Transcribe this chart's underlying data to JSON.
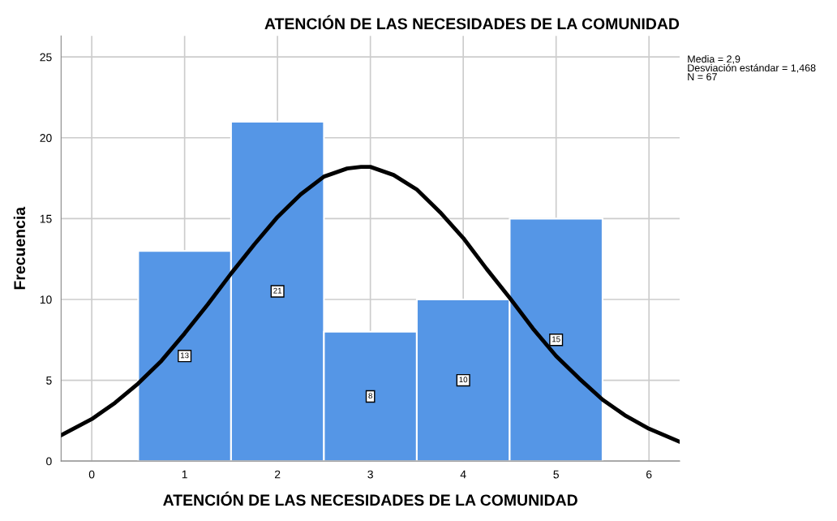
{
  "chart_data": {
    "type": "histogram",
    "title": "ATENCIÓN DE LAS NECESIDADES DE LA COMUNIDAD",
    "xlabel": "ATENCIÓN DE LAS NECESIDADES DE LA COMUNIDAD",
    "ylabel": "Frecuencia",
    "bins": [
      0.5,
      1.5,
      2.5,
      3.5,
      4.5,
      5.5
    ],
    "series": [
      {
        "color": "#5596e6",
        "values": [
          13,
          21,
          8,
          10,
          15
        ],
        "value_labels": [
          "13",
          "21",
          "8",
          "10",
          "15"
        ]
      },
      {
        "type": "line",
        "color": "#000000",
        "x": [
          -0.33,
          0,
          0.25,
          0.5,
          0.75,
          1,
          1.25,
          1.5,
          1.75,
          2,
          2.25,
          2.5,
          2.75,
          2.9,
          3,
          3.25,
          3.5,
          3.75,
          4,
          4.25,
          4.5,
          4.75,
          5,
          5.25,
          5.5,
          5.75,
          6,
          6.33
        ],
        "values": [
          1.6,
          2.6,
          3.6,
          4.8,
          6.2,
          7.9,
          9.7,
          11.6,
          13.4,
          15.1,
          16.5,
          17.6,
          18.1,
          18.2,
          18.2,
          17.7,
          16.8,
          15.4,
          13.8,
          11.9,
          10.1,
          8.2,
          6.5,
          5.1,
          3.8,
          2.8,
          2.0,
          1.2
        ]
      }
    ],
    "xlim": [
      -0.33,
      6.33
    ],
    "xticks": [
      0,
      1,
      2,
      3,
      4,
      5,
      6
    ],
    "ylim": [
      0,
      26.3
    ],
    "yticks": [
      0,
      5,
      10,
      15,
      20,
      25
    ],
    "grid": true,
    "legend": false,
    "marker": "none",
    "line_style": "solid",
    "annotations": [
      "Media = 2,9",
      "Desviación estándar = 1,468",
      "N = 67"
    ]
  }
}
